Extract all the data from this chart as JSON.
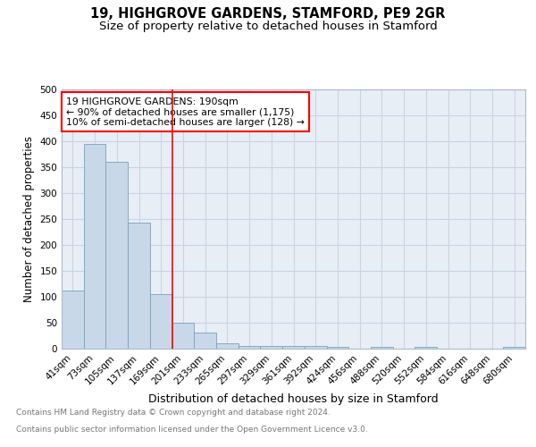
{
  "title": "19, HIGHGROVE GARDENS, STAMFORD, PE9 2GR",
  "subtitle": "Size of property relative to detached houses in Stamford",
  "xlabel": "Distribution of detached houses by size in Stamford",
  "ylabel": "Number of detached properties",
  "categories": [
    "41sqm",
    "73sqm",
    "105sqm",
    "137sqm",
    "169sqm",
    "201sqm",
    "233sqm",
    "265sqm",
    "297sqm",
    "329sqm",
    "361sqm",
    "392sqm",
    "424sqm",
    "456sqm",
    "488sqm",
    "520sqm",
    "552sqm",
    "584sqm",
    "616sqm",
    "648sqm",
    "680sqm"
  ],
  "values": [
    112,
    395,
    360,
    243,
    105,
    50,
    31,
    10,
    6,
    5,
    6,
    5,
    4,
    0,
    4,
    0,
    4,
    0,
    0,
    0,
    4
  ],
  "bar_color": "#c8d8e8",
  "bar_edge_color": "#7aa0be",
  "vline_x_idx": 4.5,
  "vline_color": "red",
  "annotation_text": "19 HIGHGROVE GARDENS: 190sqm\n← 90% of detached houses are smaller (1,175)\n10% of semi-detached houses are larger (128) →",
  "annotation_box_color": "white",
  "annotation_box_edge_color": "red",
  "footer_line1": "Contains HM Land Registry data © Crown copyright and database right 2024.",
  "footer_line2": "Contains public sector information licensed under the Open Government Licence v3.0.",
  "ylim": [
    0,
    500
  ],
  "yticks": [
    0,
    50,
    100,
    150,
    200,
    250,
    300,
    350,
    400,
    450,
    500
  ],
  "grid_color": "#c8d4e4",
  "bg_color": "#e8eef6",
  "title_fontsize": 10.5,
  "subtitle_fontsize": 9.5,
  "ylabel_fontsize": 8.5,
  "xlabel_fontsize": 9,
  "tick_fontsize": 7.5,
  "annot_fontsize": 7.8,
  "footer_fontsize": 6.5,
  "footer_color": "#777777"
}
